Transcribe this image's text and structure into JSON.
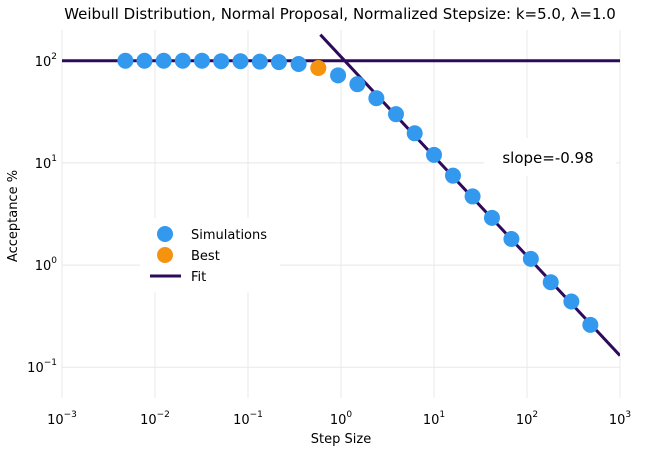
{
  "chart_data": {
    "type": "scatter",
    "title": "Weibull Distribution, Normal Proposal, Normalized Stepsize: k=5.0, λ=1.0",
    "xlabel": "Step Size",
    "ylabel": "Acceptance %",
    "xscale": "log",
    "yscale": "log",
    "xlim": [
      0.001,
      1000
    ],
    "ylim": [
      0.05,
      200
    ],
    "x_ticks": [
      {
        "base": "10",
        "exp": "−3",
        "value": 0.001
      },
      {
        "base": "10",
        "exp": "−2",
        "value": 0.01
      },
      {
        "base": "10",
        "exp": "−1",
        "value": 0.1
      },
      {
        "base": "10",
        "exp": "0",
        "value": 1
      },
      {
        "base": "10",
        "exp": "1",
        "value": 10
      },
      {
        "base": "10",
        "exp": "2",
        "value": 100
      },
      {
        "base": "10",
        "exp": "3",
        "value": 1000
      }
    ],
    "y_ticks": [
      {
        "base": "10",
        "exp": "−1",
        "value": 0.1
      },
      {
        "base": "10",
        "exp": "0",
        "value": 1
      },
      {
        "base": "10",
        "exp": "1",
        "value": 10
      },
      {
        "base": "10",
        "exp": "2",
        "value": 100
      }
    ],
    "grid": true,
    "legend_position": "center-left",
    "series": [
      {
        "name": "Simulations",
        "color": "#3399ee",
        "marker": "circle",
        "points": [
          {
            "x": 0.0048,
            "y": 100
          },
          {
            "x": 0.0077,
            "y": 100
          },
          {
            "x": 0.0124,
            "y": 100
          },
          {
            "x": 0.0199,
            "y": 100
          },
          {
            "x": 0.032,
            "y": 100
          },
          {
            "x": 0.0515,
            "y": 99
          },
          {
            "x": 0.083,
            "y": 99
          },
          {
            "x": 0.134,
            "y": 98
          },
          {
            "x": 0.215,
            "y": 97
          },
          {
            "x": 0.35,
            "y": 93
          },
          {
            "x": 0.93,
            "y": 72
          },
          {
            "x": 1.5,
            "y": 59
          },
          {
            "x": 2.4,
            "y": 43
          },
          {
            "x": 3.9,
            "y": 30
          },
          {
            "x": 6.2,
            "y": 19.5
          },
          {
            "x": 10,
            "y": 12
          },
          {
            "x": 16,
            "y": 7.5
          },
          {
            "x": 26,
            "y": 4.7
          },
          {
            "x": 42,
            "y": 2.9
          },
          {
            "x": 68,
            "y": 1.8
          },
          {
            "x": 110,
            "y": 1.15
          },
          {
            "x": 180,
            "y": 0.68
          },
          {
            "x": 300,
            "y": 0.44
          },
          {
            "x": 480,
            "y": 0.26
          }
        ]
      },
      {
        "name": "Best",
        "color": "#f5930f",
        "marker": "circle",
        "points": [
          {
            "x": 0.57,
            "y": 85
          }
        ]
      },
      {
        "name": "Fit",
        "color": "#2d0a5a",
        "marker": "line",
        "segments": [
          {
            "x": [
              0.001,
              1000
            ],
            "y": [
              100,
              100
            ]
          },
          {
            "x": [
              0.6,
              1000
            ],
            "y": [
              180,
              0.13
            ]
          }
        ]
      }
    ],
    "annotations": [
      {
        "text": "slope=-0.98",
        "x": 150,
        "y": 8.5
      }
    ]
  }
}
